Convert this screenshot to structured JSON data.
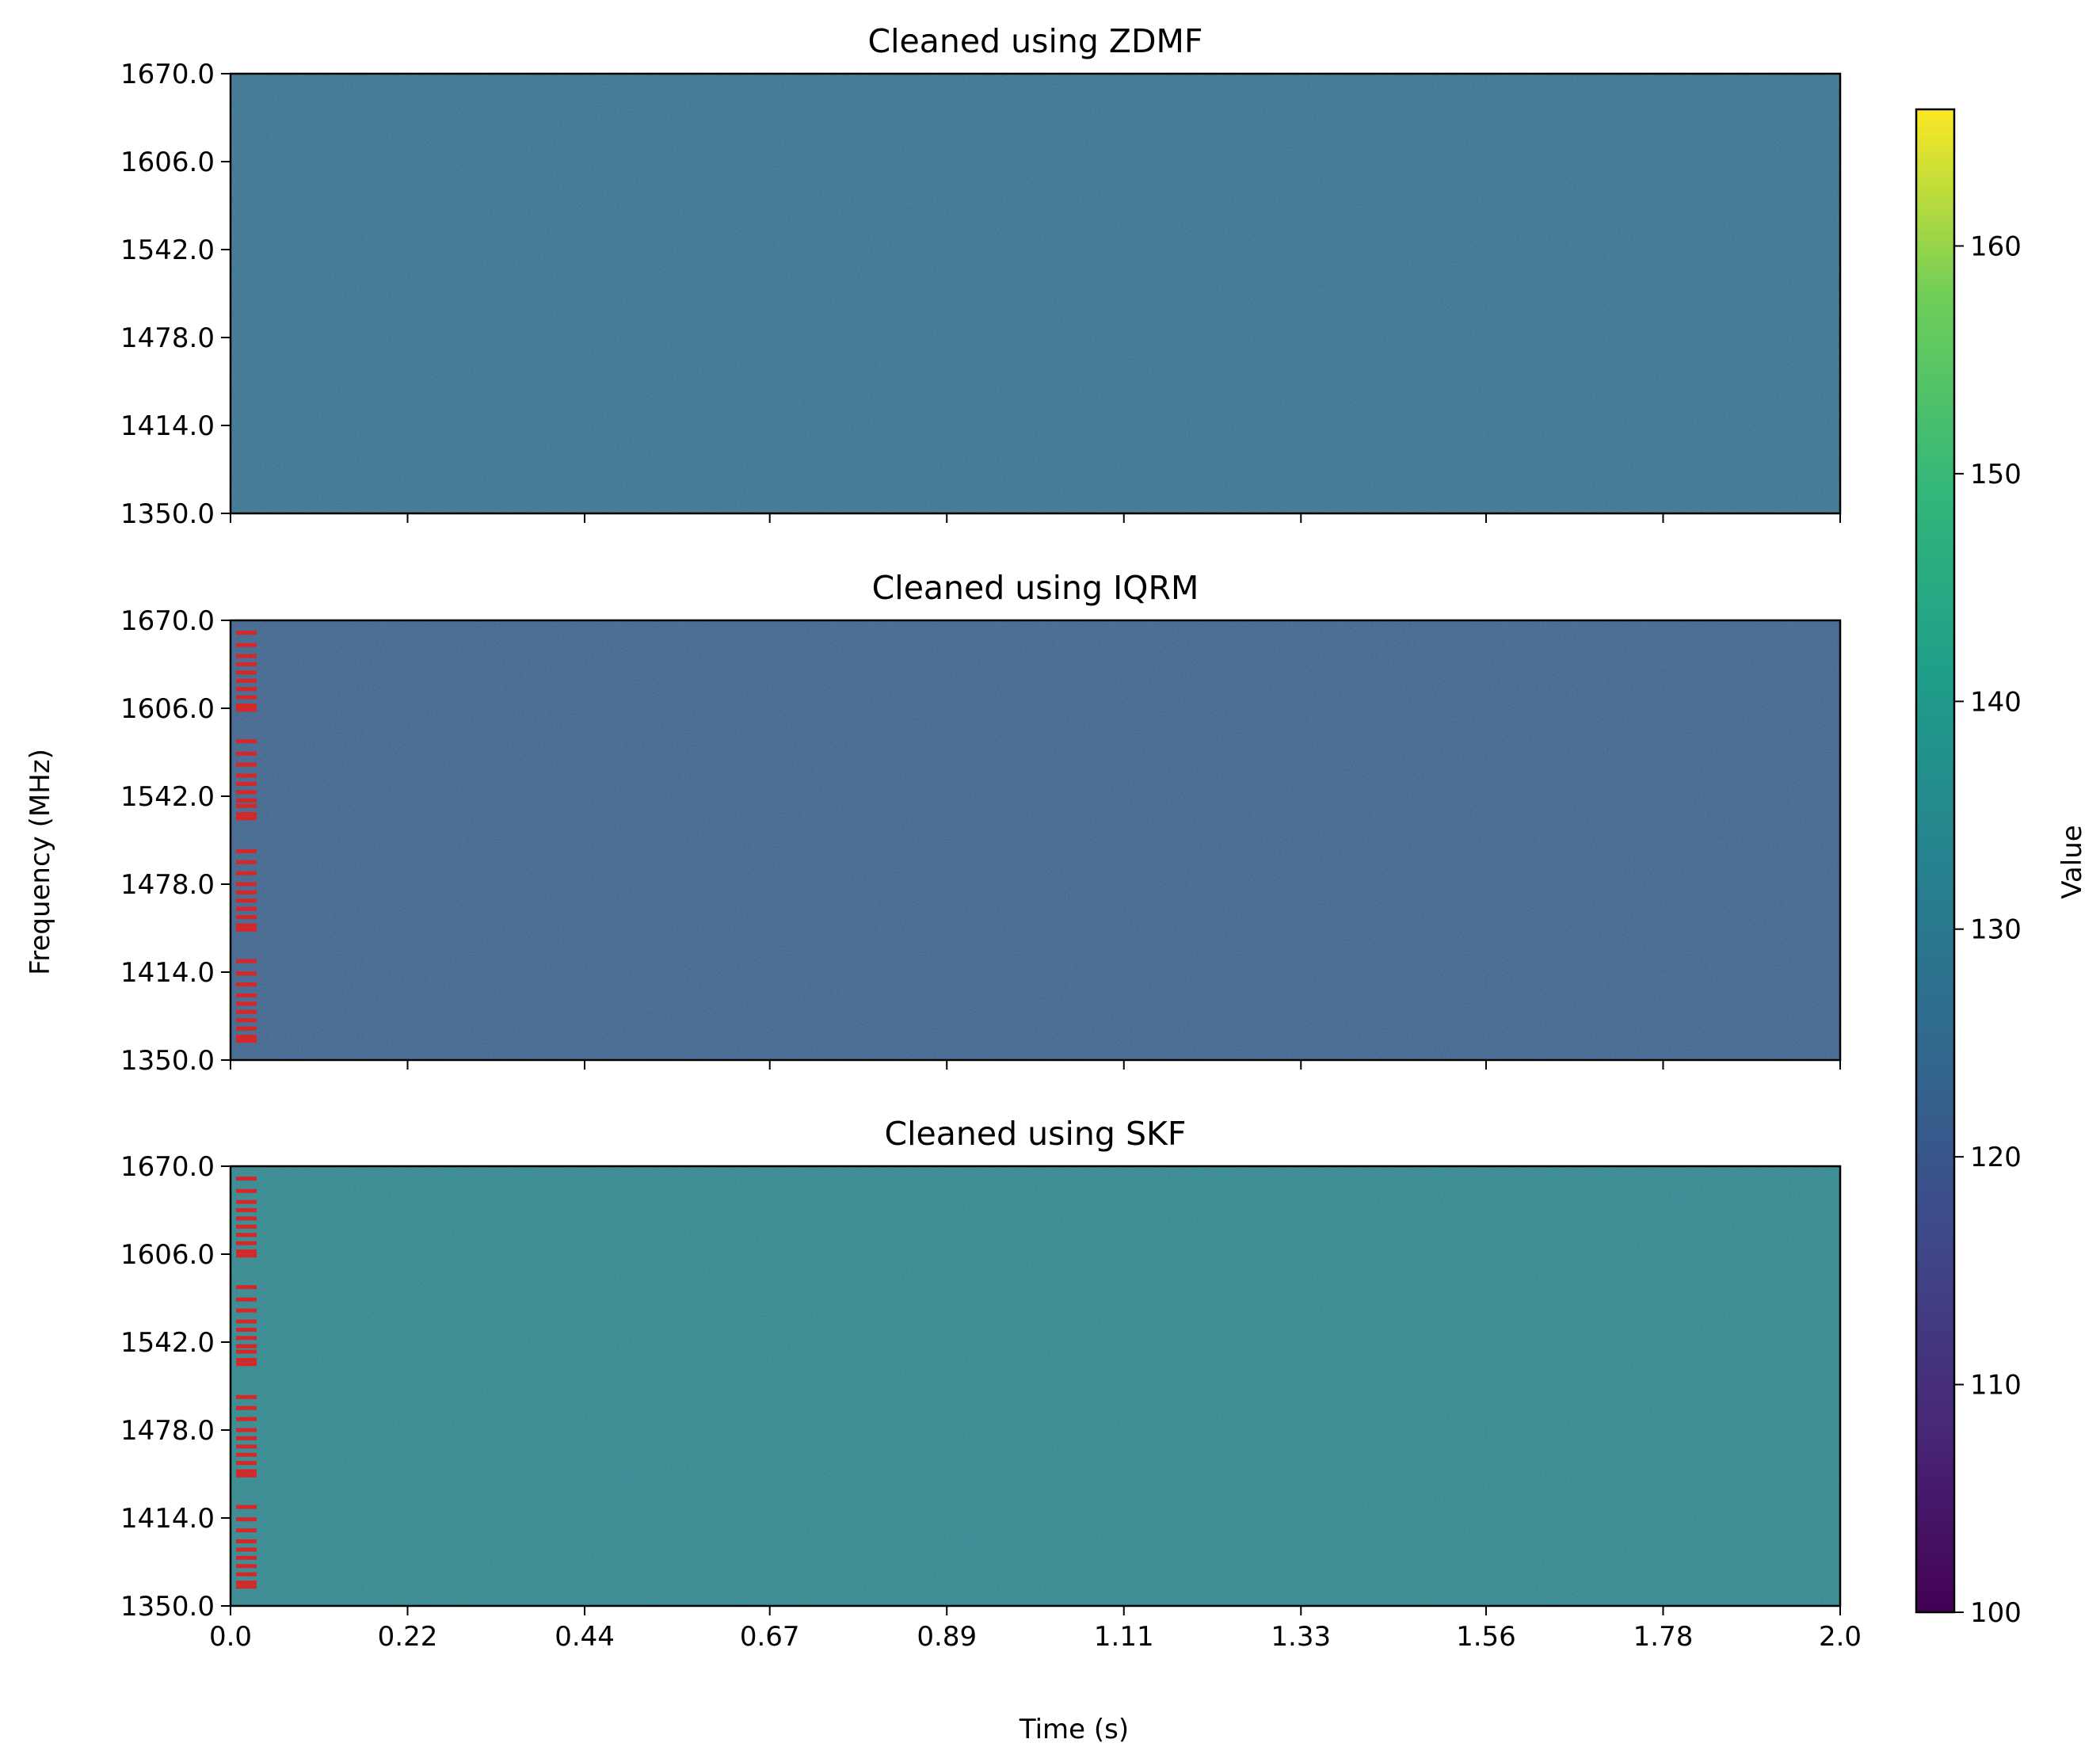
{
  "chart_data": {
    "type": "heatmap",
    "xlabel": "Time (s)",
    "ylabel": "Frequency (MHz)",
    "xlim": [
      0.0,
      2.0
    ],
    "ylim": [
      1350.0,
      1670.0
    ],
    "xticks": [
      "0.0",
      "0.22",
      "0.44",
      "0.67",
      "0.89",
      "1.11",
      "1.33",
      "1.56",
      "1.78",
      "2.0"
    ],
    "yticks": [
      "1670.0",
      "1606.0",
      "1542.0",
      "1478.0",
      "1414.0",
      "1350.0"
    ],
    "panels": [
      {
        "title": "Cleaned using ZDMF",
        "approx_value": 127,
        "flag_color": "",
        "flags_mhz": []
      },
      {
        "title": "Cleaned using IQRM",
        "approx_value": 122,
        "flag_color": "#d62728",
        "flags_mhz": [
          1661,
          1652,
          1644,
          1638,
          1632,
          1626,
          1620,
          1614,
          1608,
          1605,
          1582,
          1573,
          1565,
          1557,
          1551,
          1545,
          1539,
          1535,
          1529,
          1526,
          1502,
          1494,
          1486,
          1478,
          1472,
          1466,
          1460,
          1454,
          1448,
          1445,
          1422,
          1413,
          1405,
          1397,
          1391,
          1385,
          1379,
          1373,
          1367,
          1364
        ]
      },
      {
        "title": "Cleaned using SKF",
        "approx_value": 134,
        "flag_color": "#d62728",
        "flags_mhz": [
          1661,
          1652,
          1644,
          1638,
          1632,
          1626,
          1620,
          1614,
          1608,
          1605,
          1582,
          1573,
          1565,
          1557,
          1551,
          1545,
          1539,
          1535,
          1529,
          1526,
          1502,
          1494,
          1486,
          1478,
          1472,
          1466,
          1460,
          1454,
          1448,
          1445,
          1422,
          1413,
          1405,
          1397,
          1391,
          1385,
          1379,
          1373,
          1367,
          1364
        ]
      }
    ],
    "colorbar": {
      "label": "Value",
      "range": [
        100,
        166
      ],
      "ticks": [
        "100",
        "110",
        "120",
        "130",
        "140",
        "150",
        "160"
      ],
      "colormap": "viridis"
    },
    "legend": "none",
    "grid": false
  }
}
